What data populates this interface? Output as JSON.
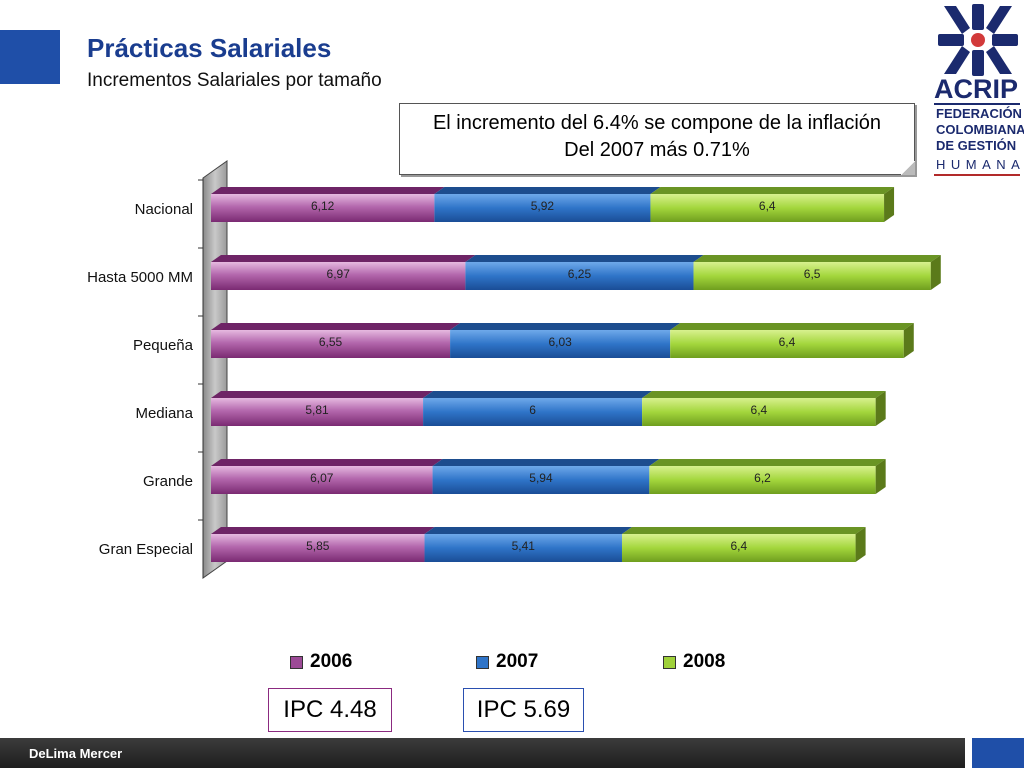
{
  "header": {
    "title": "Prácticas Salariales",
    "subtitle": "Incrementos Salariales por tamaño"
  },
  "logo": {
    "name": "ACRIP",
    "lines": [
      "FEDERACIÓN",
      "COLOMBIANA",
      "DE GESTIÓN",
      "HUMANA"
    ]
  },
  "callout": {
    "line1": "El incremento del 6.4% se compone de la inflación",
    "line2": "Del 2007 más 0.71%"
  },
  "colors": {
    "title": "#1a3d8f",
    "accent_blue": "#1f4fa8",
    "series_2006": "#9c4a96",
    "series_2007": "#2f74c8",
    "series_2008": "#9fd13a"
  },
  "chart_data": {
    "type": "bar",
    "orientation": "horizontal",
    "stacked": true,
    "categories": [
      "Nacional",
      "Hasta 5000 MM",
      "Pequeña",
      "Mediana",
      "Grande",
      "Gran Especial"
    ],
    "series": [
      {
        "name": "2006",
        "values": [
          "6,12",
          "6,97",
          "6,55",
          "5,81",
          "6,07",
          "5,85"
        ]
      },
      {
        "name": "2007",
        "values": [
          "5,92",
          "6,25",
          "6,03",
          "6",
          "5,94",
          "5,41"
        ]
      },
      {
        "name": "2008",
        "values": [
          "6,4",
          "6,5",
          "6,4",
          "6,4",
          "6,2",
          "6,4"
        ]
      }
    ],
    "legend": "bottom",
    "grid": false
  },
  "ipc": [
    {
      "label": "IPC 4.48"
    },
    {
      "label": "IPC 5.69"
    }
  ],
  "footer": {
    "text": "DeLima Mercer"
  }
}
